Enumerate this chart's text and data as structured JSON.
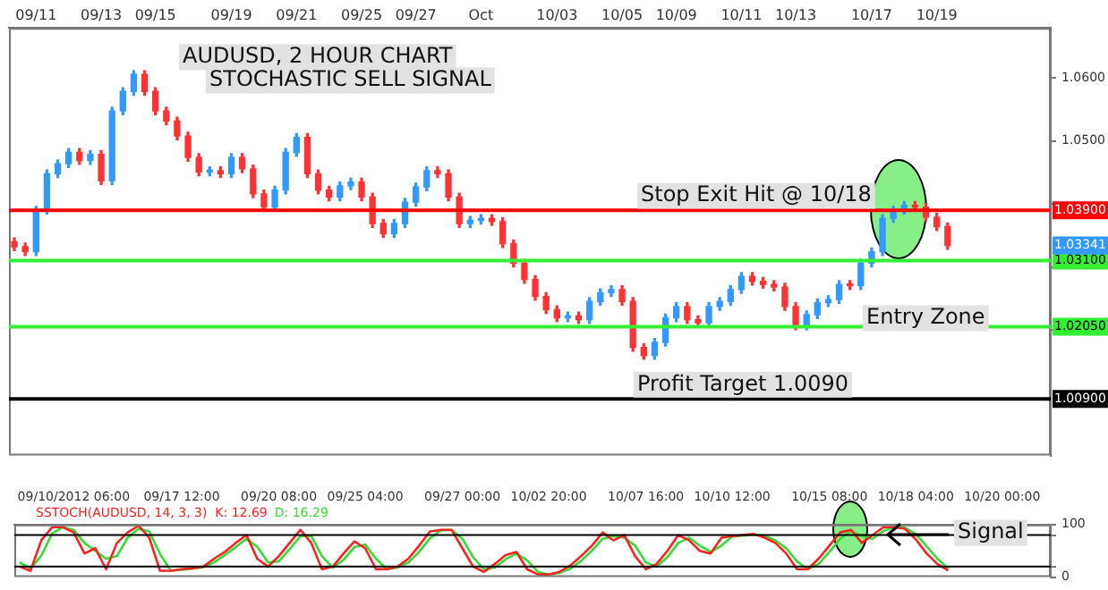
{
  "chart_data": [
    {
      "type": "candlestick",
      "title": "AUDUSD, 2 HOUR CHART",
      "subtitle": "STOCHASTIC SELL SIGNAL",
      "categories": [
        null,
        null,
        "09/11",
        null,
        null,
        null,
        null,
        null,
        "09/13",
        null,
        null,
        null,
        null,
        "09/15",
        null,
        null,
        null,
        null,
        null,
        null,
        "09/19",
        null,
        null,
        null,
        null,
        null,
        "09/21",
        null,
        null,
        null,
        null,
        null,
        "09/25",
        null,
        null,
        null,
        null,
        "09/27",
        null,
        null,
        null,
        null,
        null,
        "Oct",
        null,
        null,
        null,
        null,
        null,
        null,
        "10/03",
        null,
        null,
        null,
        null,
        null,
        "10/05",
        null,
        null,
        null,
        null,
        "10/09",
        null,
        null,
        null,
        null,
        null,
        "10/11",
        null,
        null,
        null,
        null,
        "10/13",
        null,
        null,
        null,
        null,
        null,
        null,
        "10/17",
        null,
        null,
        null,
        null,
        null,
        "10/19",
        null,
        null,
        null,
        null,
        null,
        null,
        null,
        null,
        null,
        null
      ],
      "ohlc": [
        [
          1.034,
          1.0346,
          1.0326,
          1.0332
        ],
        [
          1.0332,
          1.0338,
          1.0318,
          1.0324
        ],
        [
          1.0324,
          1.0396,
          1.0318,
          1.039
        ],
        [
          1.039,
          1.0454,
          1.0384,
          1.0448
        ],
        [
          1.0448,
          1.047,
          1.0442,
          1.0464
        ],
        [
          1.0464,
          1.0488,
          1.0458,
          1.0482
        ],
        [
          1.0482,
          1.0488,
          1.0463,
          1.0469
        ],
        [
          1.0469,
          1.0485,
          1.0463,
          1.0479
        ],
        [
          1.0479,
          1.0485,
          1.0431,
          1.0437
        ],
        [
          1.0437,
          1.0554,
          1.0431,
          1.0548
        ],
        [
          1.0548,
          1.0585,
          1.0542,
          1.0579
        ],
        [
          1.0579,
          1.0612,
          1.0573,
          1.0606
        ],
        [
          1.0606,
          1.0612,
          1.0573,
          1.0579
        ],
        [
          1.0579,
          1.0585,
          1.0542,
          1.0548
        ],
        [
          1.0548,
          1.0554,
          1.0526,
          1.0532
        ],
        [
          1.0532,
          1.0538,
          1.0502,
          1.0508
        ],
        [
          1.0508,
          1.0514,
          1.0468,
          1.0474
        ],
        [
          1.0474,
          1.048,
          1.0445,
          1.0451
        ],
        [
          1.0451,
          1.0459,
          1.0445,
          1.0453
        ],
        [
          1.0453,
          1.0459,
          1.0442,
          1.0448
        ],
        [
          1.0448,
          1.048,
          1.0442,
          1.0474
        ],
        [
          1.0474,
          1.048,
          1.045,
          1.0456
        ],
        [
          1.0456,
          1.0462,
          1.041,
          1.0416
        ],
        [
          1.0416,
          1.0422,
          1.0389,
          1.0395
        ],
        [
          1.0395,
          1.0428,
          1.0389,
          1.0422
        ],
        [
          1.0422,
          1.0488,
          1.0416,
          1.0482
        ],
        [
          1.0482,
          1.0512,
          1.0476,
          1.0506
        ],
        [
          1.0506,
          1.0512,
          1.0442,
          1.0448
        ],
        [
          1.0448,
          1.0454,
          1.0416,
          1.0422
        ],
        [
          1.0422,
          1.0428,
          1.0405,
          1.0411
        ],
        [
          1.0411,
          1.0435,
          1.0405,
          1.0429
        ],
        [
          1.0429,
          1.0441,
          1.0423,
          1.0435
        ],
        [
          1.0435,
          1.0441,
          1.0405,
          1.0411
        ],
        [
          1.0411,
          1.0417,
          1.0363,
          1.0369
        ],
        [
          1.0369,
          1.0375,
          1.0347,
          1.0353
        ],
        [
          1.0353,
          1.0375,
          1.0347,
          1.0369
        ],
        [
          1.0369,
          1.0409,
          1.0363,
          1.0403
        ],
        [
          1.0403,
          1.0433,
          1.0397,
          1.0427
        ],
        [
          1.0427,
          1.0459,
          1.0421,
          1.0453
        ],
        [
          1.0453,
          1.0459,
          1.0442,
          1.0448
        ],
        [
          1.0448,
          1.0454,
          1.0405,
          1.0411
        ],
        [
          1.0411,
          1.0417,
          1.0363,
          1.0369
        ],
        [
          1.0369,
          1.038,
          1.0363,
          1.0374
        ],
        [
          1.0374,
          1.0383,
          1.0368,
          1.0377
        ],
        [
          1.0377,
          1.0383,
          1.0366,
          1.0372
        ],
        [
          1.0372,
          1.0378,
          1.0331,
          1.0337
        ],
        [
          1.0337,
          1.0343,
          1.03,
          1.0306
        ],
        [
          1.0306,
          1.0312,
          1.0274,
          1.028
        ],
        [
          1.028,
          1.0286,
          1.0247,
          1.0253
        ],
        [
          1.0253,
          1.0259,
          1.0226,
          1.0232
        ],
        [
          1.0232,
          1.0238,
          1.0213,
          1.0219
        ],
        [
          1.0219,
          1.0228,
          1.0213,
          1.0222
        ],
        [
          1.0222,
          1.0228,
          1.021,
          1.0216
        ],
        [
          1.0216,
          1.0251,
          1.021,
          1.0245
        ],
        [
          1.0245,
          1.0265,
          1.0239,
          1.0259
        ],
        [
          1.0259,
          1.027,
          1.0253,
          1.0264
        ],
        [
          1.0264,
          1.027,
          1.0239,
          1.0245
        ],
        [
          1.0245,
          1.0251,
          1.0166,
          1.0172
        ],
        [
          1.0172,
          1.0178,
          1.0153,
          1.0159
        ],
        [
          1.0159,
          1.0186,
          1.0153,
          1.018
        ],
        [
          1.018,
          1.0225,
          1.0174,
          1.0219
        ],
        [
          1.0219,
          1.0243,
          1.0213,
          1.0237
        ],
        [
          1.0237,
          1.0243,
          1.021,
          1.0216
        ],
        [
          1.0216,
          1.0222,
          1.0205,
          1.0211
        ],
        [
          1.0211,
          1.0243,
          1.0205,
          1.0237
        ],
        [
          1.0237,
          1.0251,
          1.0231,
          1.0245
        ],
        [
          1.0245,
          1.027,
          1.0239,
          1.0264
        ],
        [
          1.0264,
          1.0291,
          1.0258,
          1.0285
        ],
        [
          1.0285,
          1.0291,
          1.0271,
          1.0277
        ],
        [
          1.0277,
          1.0283,
          1.0266,
          1.0272
        ],
        [
          1.0272,
          1.0278,
          1.0262,
          1.0268
        ],
        [
          1.0268,
          1.0274,
          1.0231,
          1.0237
        ],
        [
          1.0237,
          1.0243,
          1.02,
          1.0206
        ],
        [
          1.0206,
          1.023,
          1.02,
          1.0224
        ],
        [
          1.0224,
          1.0249,
          1.0218,
          1.0243
        ],
        [
          1.0243,
          1.0254,
          1.0237,
          1.0248
        ],
        [
          1.0248,
          1.0278,
          1.0242,
          1.0272
        ],
        [
          1.0272,
          1.0278,
          1.0264,
          1.027
        ],
        [
          1.027,
          1.0312,
          1.0264,
          1.0306
        ],
        [
          1.0306,
          1.033,
          1.03,
          1.0324
        ],
        [
          1.0324,
          1.0383,
          1.0318,
          1.0377
        ],
        [
          1.0377,
          1.0396,
          1.0371,
          1.039
        ],
        [
          1.039,
          1.0404,
          1.0384,
          1.0398
        ],
        [
          1.0398,
          1.0404,
          1.0389,
          1.0395
        ],
        [
          1.0395,
          1.0401,
          1.0373,
          1.0379
        ],
        [
          1.0379,
          1.0385,
          1.0358,
          1.0364
        ],
        [
          1.0364,
          1.037,
          1.0328,
          1.0334
        ],
        null,
        null,
        null,
        null,
        null,
        null,
        null,
        null,
        null
      ],
      "colors": [
        "#ff3333",
        "#ff3333",
        "#3399ff",
        "#3399ff",
        "#3399ff",
        "#3399ff",
        "#ff3333",
        "#3399ff",
        "#ff3333",
        "#3399ff",
        "#3399ff",
        "#3399ff",
        "#ff3333",
        "#ff3333",
        "#ff3333",
        "#ff3333",
        "#ff3333",
        "#ff3333",
        "#3399ff",
        "#ff3333",
        "#3399ff",
        "#ff3333",
        "#ff3333",
        "#ff3333",
        "#3399ff",
        "#3399ff",
        "#3399ff",
        "#ff3333",
        "#ff3333",
        "#ff3333",
        "#3399ff",
        "#3399ff",
        "#ff3333",
        "#ff3333",
        "#ff3333",
        "#3399ff",
        "#3399ff",
        "#3399ff",
        "#3399ff",
        "#ff3333",
        "#ff3333",
        "#ff3333",
        "#3399ff",
        "#3399ff",
        "#ff3333",
        "#ff3333",
        "#ff3333",
        "#ff3333",
        "#ff3333",
        "#ff3333",
        "#ff3333",
        "#3399ff",
        "#ff3333",
        "#3399ff",
        "#3399ff",
        "#3399ff",
        "#ff3333",
        "#ff3333",
        "#ff3333",
        "#3399ff",
        "#3399ff",
        "#3399ff",
        "#ff3333",
        "#ff3333",
        "#3399ff",
        "#3399ff",
        "#3399ff",
        "#3399ff",
        "#ff3333",
        "#ff3333",
        "#ff3333",
        "#ff3333",
        "#ff3333",
        "#3399ff",
        "#3399ff",
        "#3399ff",
        "#3399ff",
        "#ff3333",
        "#3399ff",
        "#3399ff",
        "#3399ff",
        "#3399ff",
        "#3399ff",
        "#ff3333",
        "#ff3333",
        "#ff3333",
        "#ff3333",
        null,
        null,
        null,
        null,
        null,
        null,
        null,
        null,
        null
      ],
      "ylim": [
        1.0,
        1.068
      ],
      "yticks": [
        {
          "value": 1.02,
          "label": null
        },
        {
          "value": 1.03,
          "label": null
        },
        {
          "value": 1.04,
          "label": null
        },
        {
          "value": 1.05,
          "label": "1.0500"
        },
        {
          "value": 1.06,
          "label": "1.0600"
        }
      ],
      "ref_lines": [
        {
          "axis": "y",
          "value": 1.039,
          "label": "1.03900",
          "color": "#ff0000"
        },
        {
          "axis": "y",
          "value": 1.031,
          "label": "1.03100",
          "color": "#33ee33"
        },
        {
          "axis": "y",
          "value": 1.0205,
          "label": "1.02050",
          "color": "#33ee33"
        },
        {
          "axis": "y",
          "value": 1.009,
          "label": "1.00900",
          "color": "#000000"
        }
      ],
      "annotations": [
        {
          "text": "Stop Exit Hit @ 10/18",
          "y": 1.039
        },
        {
          "text": "1.03341",
          "y": 1.03341
        },
        "Entry Zone",
        {
          "text": "Profit Target 1.0090",
          "y": 1.009
        }
      ]
    },
    {
      "type": "line",
      "marker": "none",
      "legend": "top left",
      "categories": [
        null,
        null,
        null,
        null,
        null,
        "09/10/2012 06:00",
        null,
        null,
        null,
        null,
        null,
        null,
        null,
        null,
        null,
        "09/17 12:00",
        null,
        null,
        null,
        null,
        null,
        null,
        null,
        null,
        "09/20 08:00",
        null,
        null,
        null,
        null,
        null,
        null,
        null,
        "09/25 04:00",
        null,
        null,
        null,
        null,
        null,
        null,
        null,
        null,
        "09/27 00:00",
        null,
        null,
        null,
        null,
        null,
        null,
        null,
        "10/02 20:00",
        null,
        null,
        null,
        null,
        null,
        null,
        null,
        null,
        "10/07 16:00",
        null,
        null,
        null,
        null,
        null,
        null,
        null,
        "10/10 12:00",
        null,
        null,
        null,
        null,
        null,
        null,
        null,
        null,
        "10/15 08:00",
        null,
        null,
        null,
        null,
        null,
        null,
        null,
        "10/18 04:00",
        null,
        null,
        null,
        null,
        null,
        null,
        null,
        "10/20 00:00",
        null,
        null,
        null,
        null
      ],
      "series": [
        {
          "name": "SSTOCH(AUDUSD, 14, 3, 3)  K: 12.69",
          "color": "#ff2222",
          "values": [
            20,
            12,
            70,
            95,
            95,
            85,
            45,
            55,
            15,
            65,
            85,
            98,
            75,
            12,
            12,
            15,
            17,
            20,
            35,
            48,
            65,
            80,
            35,
            20,
            40,
            65,
            90,
            65,
            15,
            20,
            45,
            68,
            55,
            15,
            15,
            20,
            35,
            60,
            87,
            90,
            90,
            55,
            20,
            10,
            25,
            42,
            48,
            15,
            5,
            5,
            10,
            22,
            40,
            60,
            85,
            70,
            80,
            40,
            15,
            25,
            50,
            80,
            70,
            50,
            45,
            75,
            78,
            80,
            82,
            75,
            65,
            45,
            15,
            15,
            35,
            60,
            85,
            90,
            65,
            80,
            95,
            95,
            92,
            72,
            45,
            25,
            12.69,
            null,
            null,
            null,
            null,
            null,
            null,
            null,
            null,
            null
          ]
        },
        {
          "name": "D: 16.29",
          "color": "#33dd33",
          "values": [
            28,
            16,
            41,
            83,
            95,
            90,
            65,
            50,
            35,
            40,
            75,
            92,
            87,
            44,
            12,
            14,
            16,
            19,
            28,
            42,
            57,
            73,
            58,
            28,
            30,
            53,
            78,
            78,
            40,
            18,
            33,
            57,
            62,
            35,
            15,
            18,
            28,
            48,
            74,
            89,
            90,
            73,
            38,
            15,
            18,
            34,
            45,
            32,
            10,
            5,
            8,
            16,
            31,
            50,
            73,
            78,
            75,
            60,
            28,
            20,
            38,
            65,
            75,
            60,
            48,
            60,
            77,
            79,
            81,
            79,
            70,
            55,
            30,
            15,
            25,
            48,
            73,
            88,
            78,
            73,
            88,
            95,
            94,
            82,
            59,
            35,
            16.29,
            null,
            null,
            null,
            null,
            null,
            null,
            null,
            null,
            null
          ]
        }
      ],
      "ylim": [
        0,
        100
      ],
      "yticks": [
        0,
        {
          "value": 20,
          "label": null
        },
        {
          "value": 80,
          "label": null
        },
        100
      ],
      "ref_lines": [
        {
          "axis": "y",
          "value": 80,
          "color": "#000000"
        },
        {
          "axis": "y",
          "value": 20,
          "color": "#000000"
        }
      ],
      "annotations": [
        "Signal"
      ]
    }
  ]
}
